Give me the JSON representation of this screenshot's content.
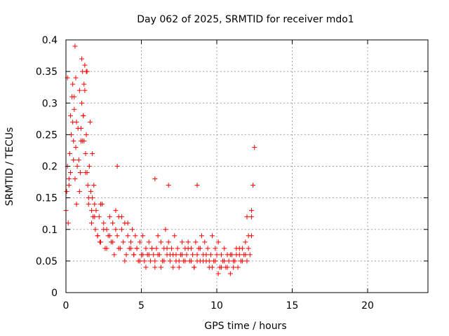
{
  "chart_data": {
    "type": "scatter",
    "title": "Day 062 of 2025, SRMTID for receiver mdo1",
    "xlabel": "GPS time / hours",
    "ylabel": "SRMTID / TECUs",
    "xlim": [
      0,
      24
    ],
    "ylim": [
      0,
      0.4
    ],
    "xticks": [
      0,
      5,
      10,
      15,
      20
    ],
    "xtick_labels": [
      "0",
      "5",
      "10",
      "15",
      "20"
    ],
    "yticks": [
      0,
      0.05,
      0.1,
      0.15,
      0.2,
      0.25,
      0.3,
      0.35,
      0.4
    ],
    "ytick_labels": [
      "0",
      "0.05",
      "0.1",
      "0.15",
      "0.2",
      "0.25",
      "0.3",
      "0.35",
      "0.4"
    ],
    "grid": true,
    "marker": "plus",
    "series": [
      {
        "name": "SRMTID",
        "color": "#ff0000",
        "x": [
          0.0,
          0.05,
          0.1,
          0.15,
          0.2,
          0.25,
          0.3,
          0.35,
          0.4,
          0.45,
          0.5,
          0.55,
          0.6,
          0.65,
          0.7,
          0.75,
          0.8,
          0.85,
          0.9,
          0.95,
          1.0,
          1.05,
          1.1,
          1.15,
          1.2,
          1.25,
          1.3,
          1.35,
          1.4,
          1.45,
          1.5,
          1.55,
          1.6,
          1.65,
          1.7,
          1.75,
          1.8,
          1.85,
          1.9,
          1.95,
          2.0,
          2.1,
          2.2,
          2.3,
          2.4,
          2.5,
          2.6,
          2.7,
          2.8,
          2.9,
          3.0,
          3.1,
          3.2,
          3.3,
          3.4,
          3.5,
          3.6,
          3.7,
          3.8,
          3.9,
          4.0,
          4.1,
          4.2,
          4.3,
          4.4,
          4.5,
          4.6,
          4.7,
          4.8,
          4.9,
          5.0,
          5.1,
          5.2,
          5.3,
          5.4,
          5.5,
          5.6,
          5.7,
          5.8,
          5.9,
          6.0,
          6.1,
          6.2,
          6.3,
          6.4,
          6.5,
          6.6,
          6.7,
          6.8,
          6.9,
          7.0,
          7.1,
          7.2,
          7.3,
          7.4,
          7.5,
          7.6,
          7.7,
          7.8,
          7.9,
          8.0,
          8.1,
          8.2,
          8.3,
          8.4,
          8.5,
          8.6,
          8.7,
          8.8,
          8.9,
          9.0,
          9.1,
          9.2,
          9.3,
          9.4,
          9.5,
          9.6,
          9.7,
          9.8,
          9.9,
          10.0,
          10.1,
          10.2,
          10.3,
          10.4,
          10.5,
          10.6,
          10.7,
          10.8,
          10.9,
          11.0,
          11.1,
          11.2,
          11.3,
          11.4,
          11.5,
          11.6,
          11.7,
          11.8,
          11.9,
          12.0,
          12.1,
          12.2,
          12.3,
          12.4,
          12.5,
          0.1,
          0.3,
          0.5,
          0.7,
          0.9,
          1.1,
          1.3,
          1.5,
          1.7,
          1.9,
          2.1,
          2.3,
          2.5,
          2.7,
          2.9,
          3.1,
          3.3,
          3.5,
          3.7,
          3.9,
          4.1,
          4.3,
          4.5,
          4.7,
          4.9,
          5.1,
          5.3,
          5.5,
          5.7,
          5.9,
          6.1,
          6.3,
          6.5,
          6.7,
          6.9,
          7.1,
          7.3,
          7.5,
          7.7,
          7.9,
          8.1,
          8.3,
          8.5,
          8.7,
          8.9,
          9.1,
          9.3,
          9.5,
          9.7,
          9.9,
          10.1,
          10.3,
          10.5,
          10.7,
          10.9,
          11.1,
          11.3,
          11.5,
          11.7,
          11.9,
          12.1,
          12.3,
          0.2,
          0.6,
          1.0,
          1.2,
          1.4,
          0.45,
          0.55,
          1.15,
          1.25,
          1.35,
          3.4,
          5.9,
          6.8,
          8.7,
          12.0,
          12.3,
          1.05,
          0.65,
          1.75,
          2.25
        ],
        "y": [
          0.13,
          0.16,
          0.2,
          0.11,
          0.17,
          0.22,
          0.19,
          0.25,
          0.31,
          0.27,
          0.24,
          0.29,
          0.18,
          0.23,
          0.14,
          0.2,
          0.26,
          0.21,
          0.16,
          0.19,
          0.24,
          0.3,
          0.35,
          0.28,
          0.33,
          0.36,
          0.22,
          0.25,
          0.19,
          0.17,
          0.14,
          0.2,
          0.27,
          0.16,
          0.13,
          0.15,
          0.12,
          0.17,
          0.14,
          0.1,
          0.13,
          0.09,
          0.12,
          0.08,
          0.14,
          0.11,
          0.07,
          0.1,
          0.09,
          0.12,
          0.08,
          0.11,
          0.06,
          0.13,
          0.09,
          0.12,
          0.07,
          0.1,
          0.08,
          0.11,
          0.06,
          0.09,
          0.07,
          0.08,
          0.1,
          0.06,
          0.09,
          0.07,
          0.05,
          0.08,
          0.06,
          0.09,
          0.05,
          0.07,
          0.06,
          0.08,
          0.05,
          0.07,
          0.06,
          0.04,
          0.07,
          0.09,
          0.06,
          0.08,
          0.05,
          0.07,
          0.1,
          0.06,
          0.08,
          0.05,
          0.07,
          0.06,
          0.09,
          0.05,
          0.07,
          0.04,
          0.06,
          0.08,
          0.05,
          0.07,
          0.06,
          0.08,
          0.05,
          0.07,
          0.06,
          0.04,
          0.08,
          0.06,
          0.07,
          0.05,
          0.09,
          0.06,
          0.08,
          0.05,
          0.07,
          0.04,
          0.06,
          0.09,
          0.05,
          0.07,
          0.06,
          0.08,
          0.04,
          0.06,
          0.05,
          0.07,
          0.04,
          0.06,
          0.05,
          0.03,
          0.06,
          0.04,
          0.05,
          0.07,
          0.04,
          0.06,
          0.05,
          0.07,
          0.06,
          0.08,
          0.05,
          0.07,
          0.06,
          0.09,
          0.17,
          0.23,
          0.34,
          0.28,
          0.21,
          0.27,
          0.32,
          0.24,
          0.19,
          0.15,
          0.11,
          0.12,
          0.09,
          0.14,
          0.1,
          0.07,
          0.09,
          0.08,
          0.1,
          0.07,
          0.12,
          0.05,
          0.11,
          0.07,
          0.06,
          0.07,
          0.05,
          0.06,
          0.04,
          0.06,
          0.07,
          0.05,
          0.06,
          0.04,
          0.05,
          0.07,
          0.06,
          0.04,
          0.06,
          0.05,
          0.06,
          0.05,
          0.07,
          0.05,
          0.04,
          0.05,
          0.07,
          0.05,
          0.06,
          0.05,
          0.04,
          0.05,
          0.03,
          0.04,
          0.05,
          0.04,
          0.06,
          0.05,
          0.06,
          0.07,
          0.05,
          0.06,
          0.09,
          0.12,
          0.18,
          0.39,
          0.26,
          0.24,
          0.35,
          0.33,
          0.31,
          0.28,
          0.32,
          0.35,
          0.2,
          0.18,
          0.17,
          0.17,
          0.12,
          0.13,
          0.37,
          0.34,
          0.22,
          0.08
        ]
      }
    ]
  }
}
